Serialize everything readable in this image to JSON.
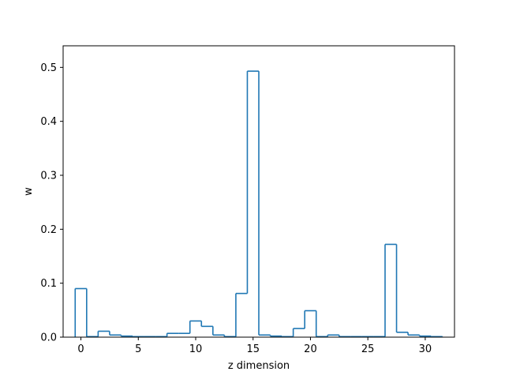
{
  "chart_data": {
    "type": "step",
    "title": "",
    "xlabel": "z dimension",
    "ylabel": "w",
    "xlim": [
      -1.55,
      32.55
    ],
    "ylim": [
      0.0,
      0.54
    ],
    "x_ticks": [
      0,
      5,
      10,
      15,
      20,
      25,
      30
    ],
    "x_tick_labels": [
      "0",
      "5",
      "10",
      "15",
      "20",
      "25",
      "30"
    ],
    "y_ticks": [
      0.0,
      0.1,
      0.2,
      0.3,
      0.4,
      0.5
    ],
    "y_tick_labels": [
      "0.0",
      "0.1",
      "0.2",
      "0.3",
      "0.4",
      "0.5"
    ],
    "grid": false,
    "line_color": "#1f77b4",
    "series": [
      {
        "x": [
          0,
          1,
          2,
          3,
          4,
          5,
          6,
          7,
          8,
          9,
          10,
          11,
          12,
          13,
          14,
          15,
          16,
          17,
          18,
          19,
          20,
          21,
          22,
          23,
          24,
          25,
          26,
          27,
          28,
          29,
          30,
          31
        ],
        "values": [
          0.09,
          0.001,
          0.011,
          0.004,
          0.002,
          0.001,
          0.001,
          0.001,
          0.007,
          0.007,
          0.03,
          0.02,
          0.004,
          0.001,
          0.081,
          0.493,
          0.004,
          0.002,
          0.001,
          0.016,
          0.049,
          0.001,
          0.004,
          0.001,
          0.001,
          0.001,
          0.001,
          0.172,
          0.009,
          0.004,
          0.002,
          0.001
        ]
      }
    ]
  }
}
